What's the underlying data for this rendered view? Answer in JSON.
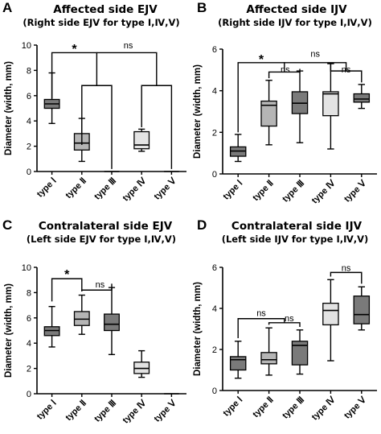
{
  "chart_data": [
    {
      "id": "A",
      "type": "box",
      "panel_label": "A",
      "title": "Affected side EJV",
      "subtitle": "(Right side EJV for type Ⅰ,Ⅳ,Ⅴ)",
      "ylabel": "Diameter (width, mm)",
      "ylim": [
        0,
        10
      ],
      "yticks": [
        0,
        2,
        4,
        6,
        8,
        10
      ],
      "categories": [
        "type Ⅰ",
        "type Ⅱ",
        "type Ⅲ",
        "type Ⅳ",
        "type Ⅴ"
      ],
      "boxes": [
        {
          "min": 3.8,
          "q1": 5.0,
          "median": 5.35,
          "q3": 5.7,
          "max": 7.8,
          "fill": "#7a7a7a"
        },
        {
          "min": 0.8,
          "q1": 1.7,
          "median": 2.25,
          "q3": 3.0,
          "max": 4.2,
          "fill": "#b5b5b5"
        },
        {
          "min": 0.0,
          "q1": 0.0,
          "median": 0.0,
          "q3": 0.0,
          "max": 0.0,
          "fill": "#7a7a7a"
        },
        {
          "min": 1.6,
          "q1": 1.8,
          "median": 2.1,
          "q3": 3.15,
          "max": 3.35,
          "fill": "#e3e3e3"
        },
        {
          "min": 0.0,
          "q1": 0.0,
          "median": 0.0,
          "q3": 0.0,
          "max": 0.0,
          "fill": "#7a7a7a"
        }
      ],
      "annotations": [
        "*",
        "ns"
      ]
    },
    {
      "id": "B",
      "type": "box",
      "panel_label": "B",
      "title": "Affected side IJV",
      "subtitle": "(Right side IJV for type Ⅰ,Ⅳ,Ⅴ)",
      "ylabel": "Diameter (width, mm)",
      "ylim": [
        0,
        6
      ],
      "yticks": [
        0,
        2,
        4,
        6
      ],
      "categories": [
        "type Ⅰ",
        "type Ⅱ",
        "type Ⅲ",
        "type Ⅳ",
        "type Ⅴ"
      ],
      "boxes": [
        {
          "min": 0.6,
          "q1": 0.85,
          "median": 1.1,
          "q3": 1.3,
          "max": 1.9,
          "fill": "#7a7a7a"
        },
        {
          "min": 1.4,
          "q1": 2.3,
          "median": 3.3,
          "q3": 3.5,
          "max": 4.5,
          "fill": "#b5b5b5"
        },
        {
          "min": 1.5,
          "q1": 2.9,
          "median": 3.4,
          "q3": 3.95,
          "max": 4.95,
          "fill": "#7a7a7a"
        },
        {
          "min": 1.2,
          "q1": 2.8,
          "median": 3.85,
          "q3": 3.95,
          "max": 5.3,
          "fill": "#e3e3e3"
        },
        {
          "min": 3.15,
          "q1": 3.45,
          "median": 3.6,
          "q3": 3.85,
          "max": 4.3,
          "fill": "#7a7a7a"
        }
      ],
      "annotations": [
        "*",
        "ns",
        "ns",
        "ns",
        "ns"
      ]
    },
    {
      "id": "C",
      "type": "box",
      "panel_label": "C",
      "title": "Contralateral side EJV",
      "subtitle": "(Left side EJV for type Ⅰ,Ⅳ,Ⅴ)",
      "ylabel": "Diameter (width, mm)",
      "ylim": [
        0,
        10
      ],
      "yticks": [
        0,
        2,
        4,
        6,
        8,
        10
      ],
      "categories": [
        "type Ⅰ",
        "type Ⅱ",
        "type Ⅲ",
        "type Ⅳ",
        "type Ⅴ"
      ],
      "boxes": [
        {
          "min": 3.7,
          "q1": 4.6,
          "median": 5.0,
          "q3": 5.3,
          "max": 6.9,
          "fill": "#7a7a7a"
        },
        {
          "min": 4.7,
          "q1": 5.4,
          "median": 5.9,
          "q3": 6.5,
          "max": 7.8,
          "fill": "#b5b5b5"
        },
        {
          "min": 3.1,
          "q1": 5.0,
          "median": 5.5,
          "q3": 6.3,
          "max": 8.4,
          "fill": "#7a7a7a"
        },
        {
          "min": 1.3,
          "q1": 1.6,
          "median": 2.0,
          "q3": 2.5,
          "max": 3.4,
          "fill": "#e3e3e3"
        },
        {
          "min": 0.0,
          "q1": 0.0,
          "median": 0.0,
          "q3": 0.0,
          "max": 0.0,
          "fill": "#7a7a7a"
        }
      ],
      "annotations": [
        "*",
        "ns"
      ]
    },
    {
      "id": "D",
      "type": "box",
      "panel_label": "D",
      "title": "Contralateral side IJV",
      "subtitle": "(Left side IJV for type Ⅰ,Ⅳ,Ⅴ)",
      "ylabel": "Diameter (width, mm)",
      "ylim": [
        0,
        6
      ],
      "yticks": [
        0,
        2,
        4,
        6
      ],
      "categories": [
        "type Ⅰ",
        "type Ⅱ",
        "type Ⅲ",
        "type Ⅳ",
        "type Ⅴ"
      ],
      "boxes": [
        {
          "min": 0.6,
          "q1": 1.0,
          "median": 1.5,
          "q3": 1.65,
          "max": 2.4,
          "fill": "#7a7a7a"
        },
        {
          "min": 0.75,
          "q1": 1.3,
          "median": 1.5,
          "q3": 1.85,
          "max": 3.05,
          "fill": "#b5b5b5"
        },
        {
          "min": 0.8,
          "q1": 1.25,
          "median": 2.2,
          "q3": 2.4,
          "max": 2.95,
          "fill": "#7a7a7a"
        },
        {
          "min": 1.45,
          "q1": 3.2,
          "median": 3.9,
          "q3": 4.25,
          "max": 5.4,
          "fill": "#e3e3e3"
        },
        {
          "min": 2.95,
          "q1": 3.25,
          "median": 3.7,
          "q3": 4.6,
          "max": 5.05,
          "fill": "#7a7a7a"
        }
      ],
      "annotations": [
        "ns",
        "ns",
        "ns"
      ]
    }
  ]
}
